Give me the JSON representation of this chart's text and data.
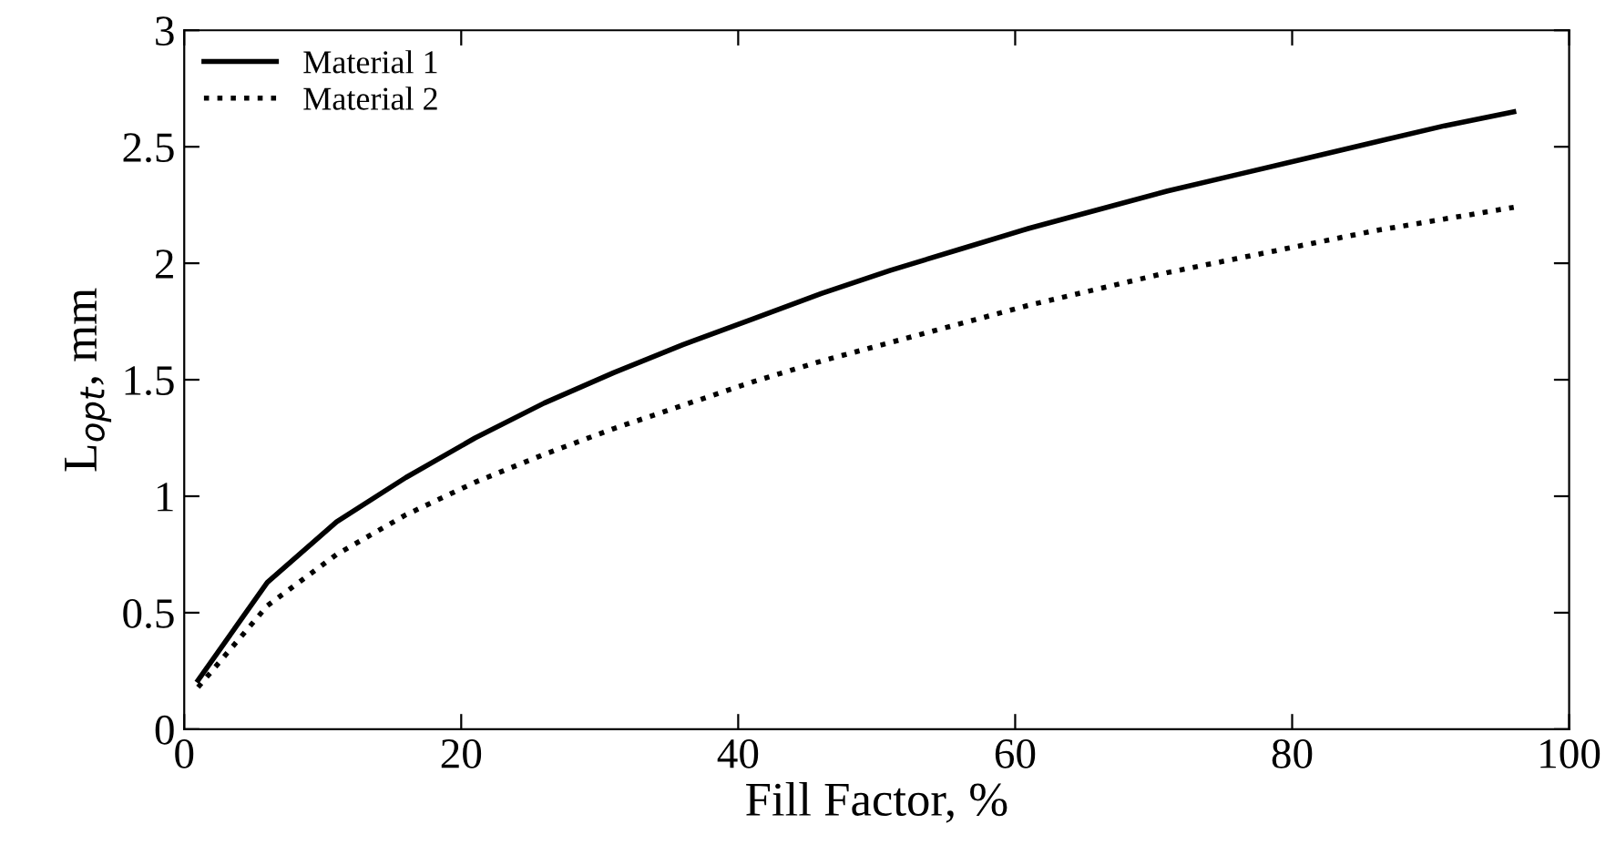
{
  "chart_data": {
    "type": "line",
    "xlabel": "Fill Factor, %",
    "ylabel": "L$_{opt}$, mm",
    "x": [
      1,
      6,
      11,
      16,
      21,
      26,
      31,
      36,
      41,
      46,
      51,
      56,
      61,
      66,
      71,
      76,
      81,
      86,
      91,
      96
    ],
    "series": [
      {
        "name": "Material 1",
        "color": "#000000",
        "line_style": "solid",
        "values": [
          0.21,
          0.63,
          0.89,
          1.08,
          1.25,
          1.4,
          1.53,
          1.65,
          1.76,
          1.87,
          1.97,
          2.06,
          2.15,
          2.23,
          2.31,
          2.38,
          2.45,
          2.52,
          2.59,
          2.65
        ]
      },
      {
        "name": "Material 2",
        "color": "#000000",
        "line_style": "dotted",
        "values": [
          0.18,
          0.53,
          0.75,
          0.92,
          1.06,
          1.18,
          1.29,
          1.39,
          1.49,
          1.58,
          1.66,
          1.74,
          1.82,
          1.89,
          1.96,
          2.02,
          2.08,
          2.14,
          2.19,
          2.24
        ]
      }
    ],
    "xlim": [
      0,
      100
    ],
    "xticks": [
      0,
      20,
      40,
      60,
      80,
      100
    ],
    "ylim": [
      0,
      3
    ],
    "yticks": [
      0,
      0.5,
      1,
      1.5,
      2,
      2.5,
      3
    ],
    "legend": "top left",
    "grid": false
  }
}
